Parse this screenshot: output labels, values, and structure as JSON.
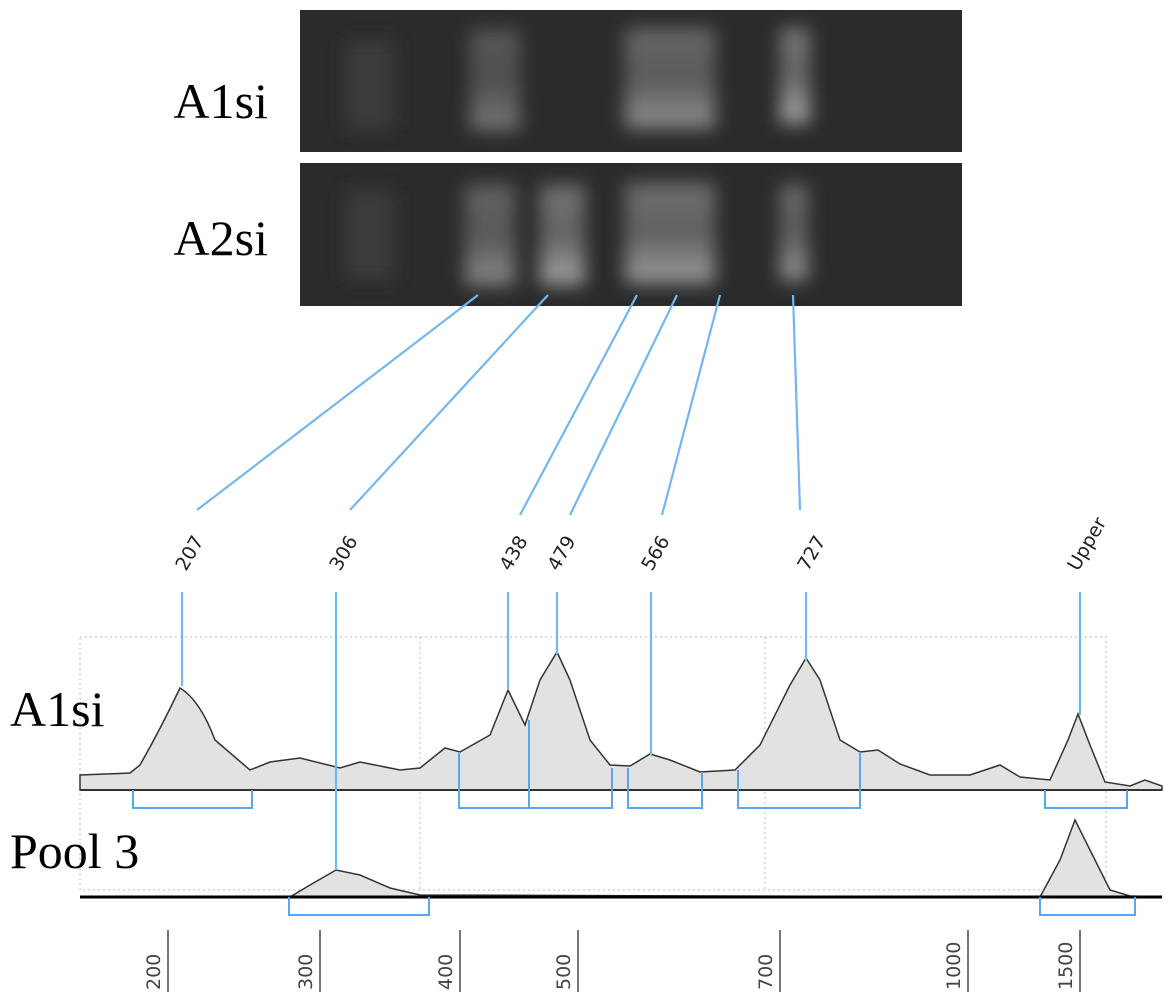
{
  "gel": {
    "lanes": [
      "A1si",
      "A2si"
    ]
  },
  "peaks": [
    207,
    306,
    438,
    479,
    566,
    727,
    "Upper"
  ],
  "traces": [
    "A1si",
    "Pool 3"
  ],
  "size_axis": {
    "ticks": [
      200,
      300,
      400,
      500,
      700,
      1000,
      1500
    ]
  }
}
